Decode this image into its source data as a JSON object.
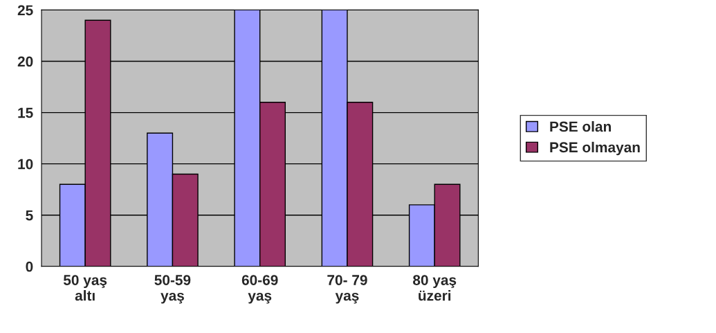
{
  "chart_data": {
    "type": "bar",
    "categories": [
      "50 yaş\naltı",
      "50-59\nyaş",
      "60-69\nyaş",
      "70- 79\nyaş",
      "80 yaş\nüzeri"
    ],
    "series": [
      {
        "name": "PSE olan",
        "color": "#9999ff",
        "values": [
          8,
          13,
          25,
          25,
          6
        ]
      },
      {
        "name": "PSE olmayan",
        "color": "#993366",
        "values": [
          24,
          9,
          16,
          16,
          8
        ]
      }
    ],
    "ylim": [
      0,
      25
    ],
    "yticks": [
      0,
      5,
      10,
      15,
      20,
      25
    ],
    "grid": "y",
    "legend": "right"
  }
}
